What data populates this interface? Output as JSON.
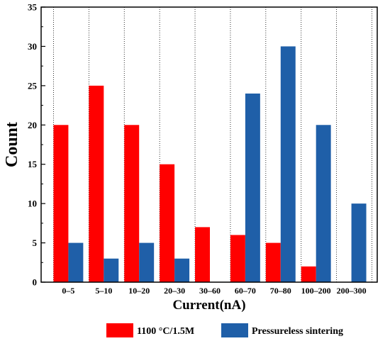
{
  "chart_data": {
    "type": "bar",
    "xlabel": "Current(nA)",
    "ylabel": "Count",
    "ylim": [
      0,
      35
    ],
    "yticks": [
      0,
      5,
      10,
      15,
      20,
      25,
      30,
      35
    ],
    "categories": [
      "0–5",
      "5–10",
      "10–20",
      "20–30",
      "30–60",
      "60–70",
      "70–80",
      "100–200",
      "200–300"
    ],
    "series": [
      {
        "name": "1100 °C/1.5M",
        "color": "#ff0000",
        "values": [
          20,
          25,
          20,
          15,
          7,
          6,
          5,
          2,
          0
        ]
      },
      {
        "name": "Pressureless sintering",
        "color": "#1f5fa8",
        "values": [
          5,
          3,
          5,
          3,
          0,
          24,
          30,
          20,
          10
        ]
      }
    ],
    "grid": "vertical dotted separators between categories",
    "legend_position": "bottom"
  }
}
